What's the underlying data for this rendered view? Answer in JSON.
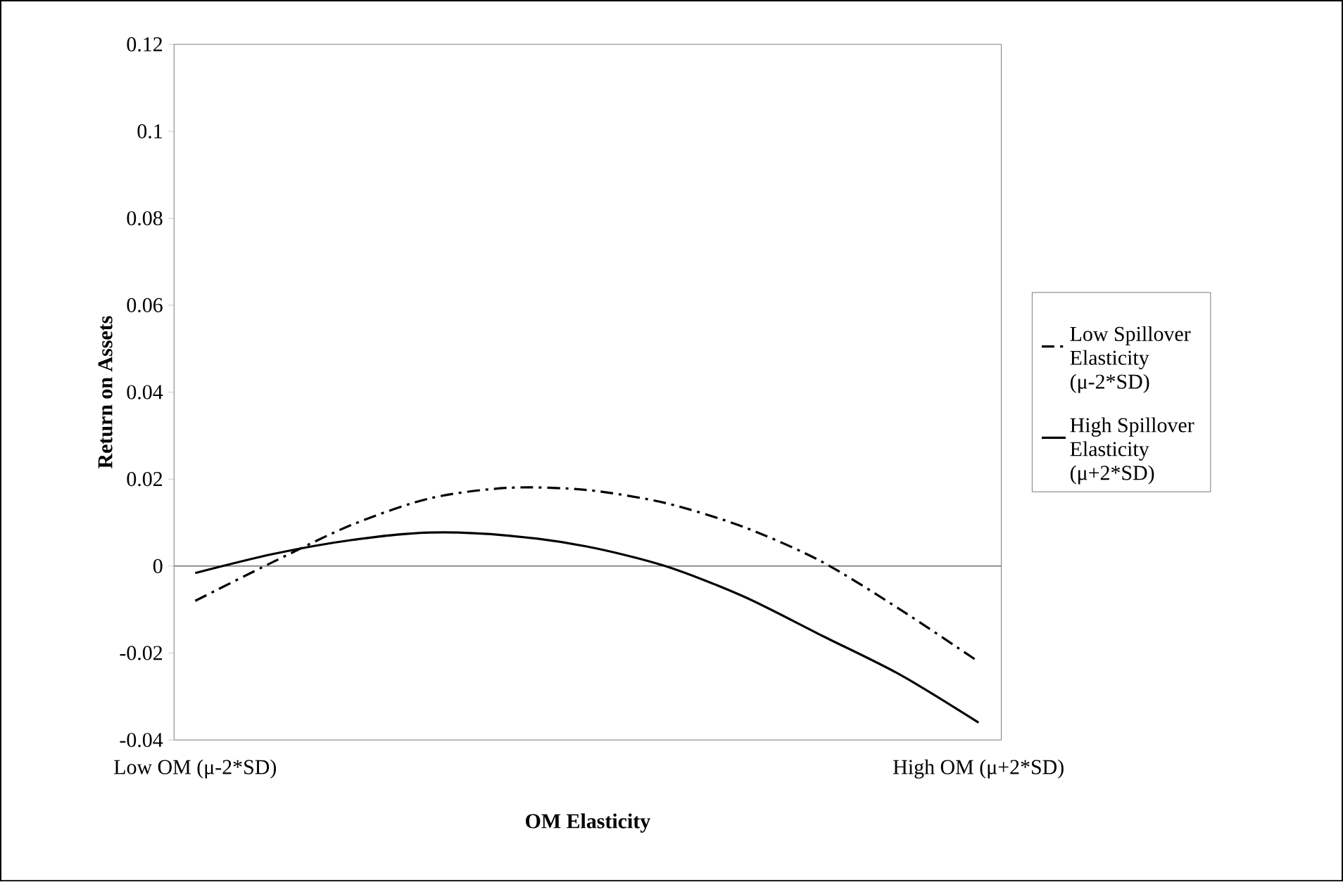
{
  "chart_data": {
    "type": "line",
    "xlabel": "OM Elasticity",
    "ylabel": "Return on Assets",
    "categories": [
      "Low OM (μ-2*SD)",
      null,
      null,
      null,
      null,
      null,
      null,
      null,
      null,
      null,
      "High OM (μ+2*SD)"
    ],
    "series": [
      {
        "name": "Low Spillover Elasticity (μ-2*SD)",
        "color": "#000000",
        "line_style": "dashdot",
        "values": [
          -0.008,
          0.001,
          0.0095,
          0.0156,
          0.018,
          0.0175,
          0.0145,
          0.009,
          0.001,
          -0.01,
          -0.022
        ]
      },
      {
        "name": "High Spillover Elasticity (μ+2*SD)",
        "color": "#000000",
        "line_style": "solid",
        "values": [
          -0.0016,
          0.0028,
          0.006,
          0.0077,
          0.007,
          0.0045,
          0.0,
          -0.007,
          -0.016,
          -0.025,
          -0.036
        ]
      }
    ],
    "ylim": [
      -0.04,
      0.12
    ],
    "yticks": [
      -0.04,
      -0.02,
      0,
      0.02,
      0.04,
      0.06,
      0.08,
      0.1,
      0.12
    ],
    "ref_lines": [
      {
        "axis": "y",
        "value": 0,
        "color": "#707070"
      }
    ],
    "grid": false,
    "legend": "right",
    "marker": "none"
  }
}
